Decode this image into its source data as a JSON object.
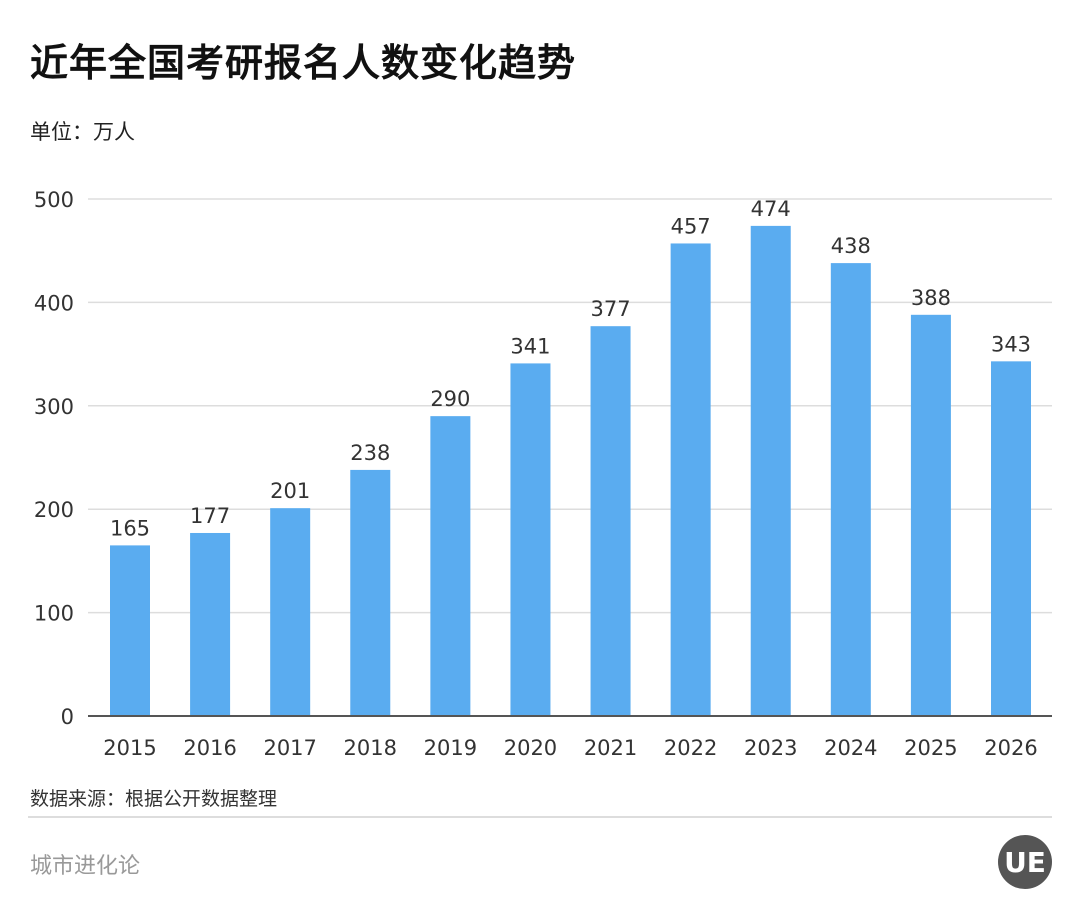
{
  "chart_data": {
    "type": "bar",
    "title": "近年全国考研报名人数变化趋势",
    "unit_label": "单位：万人",
    "categories": [
      "2015",
      "2016",
      "2017",
      "2018",
      "2019",
      "2020",
      "2021",
      "2022",
      "2023",
      "2024",
      "2025",
      "2026"
    ],
    "values": [
      165,
      177,
      201,
      238,
      290,
      341,
      377,
      457,
      474,
      438,
      388,
      343
    ],
    "ylim": [
      0,
      500
    ],
    "yticks": [
      0,
      100,
      200,
      300,
      400,
      500
    ],
    "grid": true,
    "bar_color": "#5aacf0",
    "source": "数据来源：根据公开数据整理"
  },
  "footer": {
    "brand": "城市进化论",
    "logo_text": "UE"
  }
}
